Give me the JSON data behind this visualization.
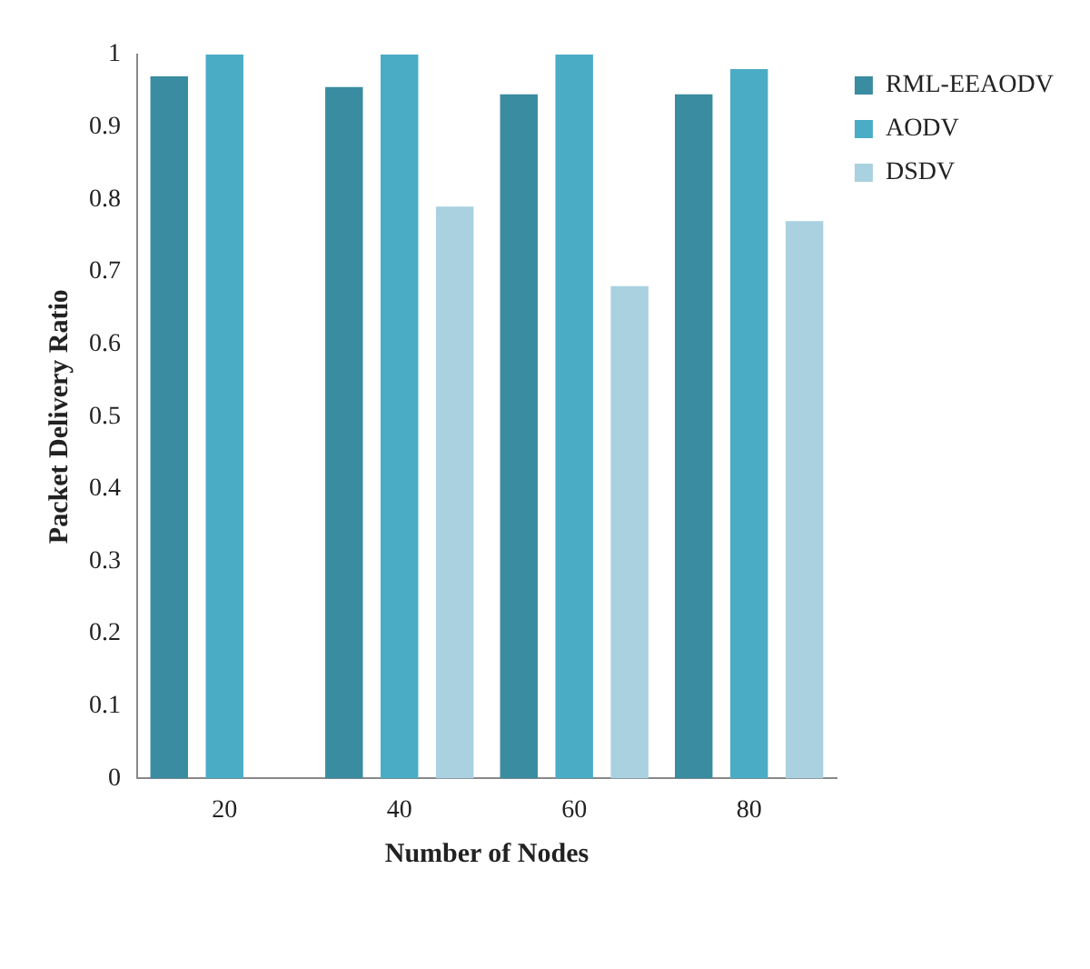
{
  "chart_data": {
    "type": "bar",
    "xlabel": "Number of Nodes",
    "ylabel": "Packet Delivery Ratio",
    "categories": [
      "20",
      "40",
      "60",
      "80"
    ],
    "series": [
      {
        "name": "RML-EEAODV",
        "color": "#3a8ca0",
        "values": [
          0.97,
          0.955,
          0.945,
          0.945
        ]
      },
      {
        "name": "AODV",
        "color": "#4bacc6",
        "values": [
          1,
          1,
          1,
          0.98
        ]
      },
      {
        "name": "DSDV",
        "color": "#a9d1e0",
        "values": [
          0,
          0.79,
          0.68,
          0.77
        ]
      }
    ],
    "ylim": [
      0,
      1
    ],
    "yticks": [
      0,
      0.1,
      0.2,
      0.3,
      0.4,
      0.5,
      0.6,
      0.7,
      0.8,
      0.9,
      1
    ],
    "grid": false,
    "legend": "top right"
  }
}
